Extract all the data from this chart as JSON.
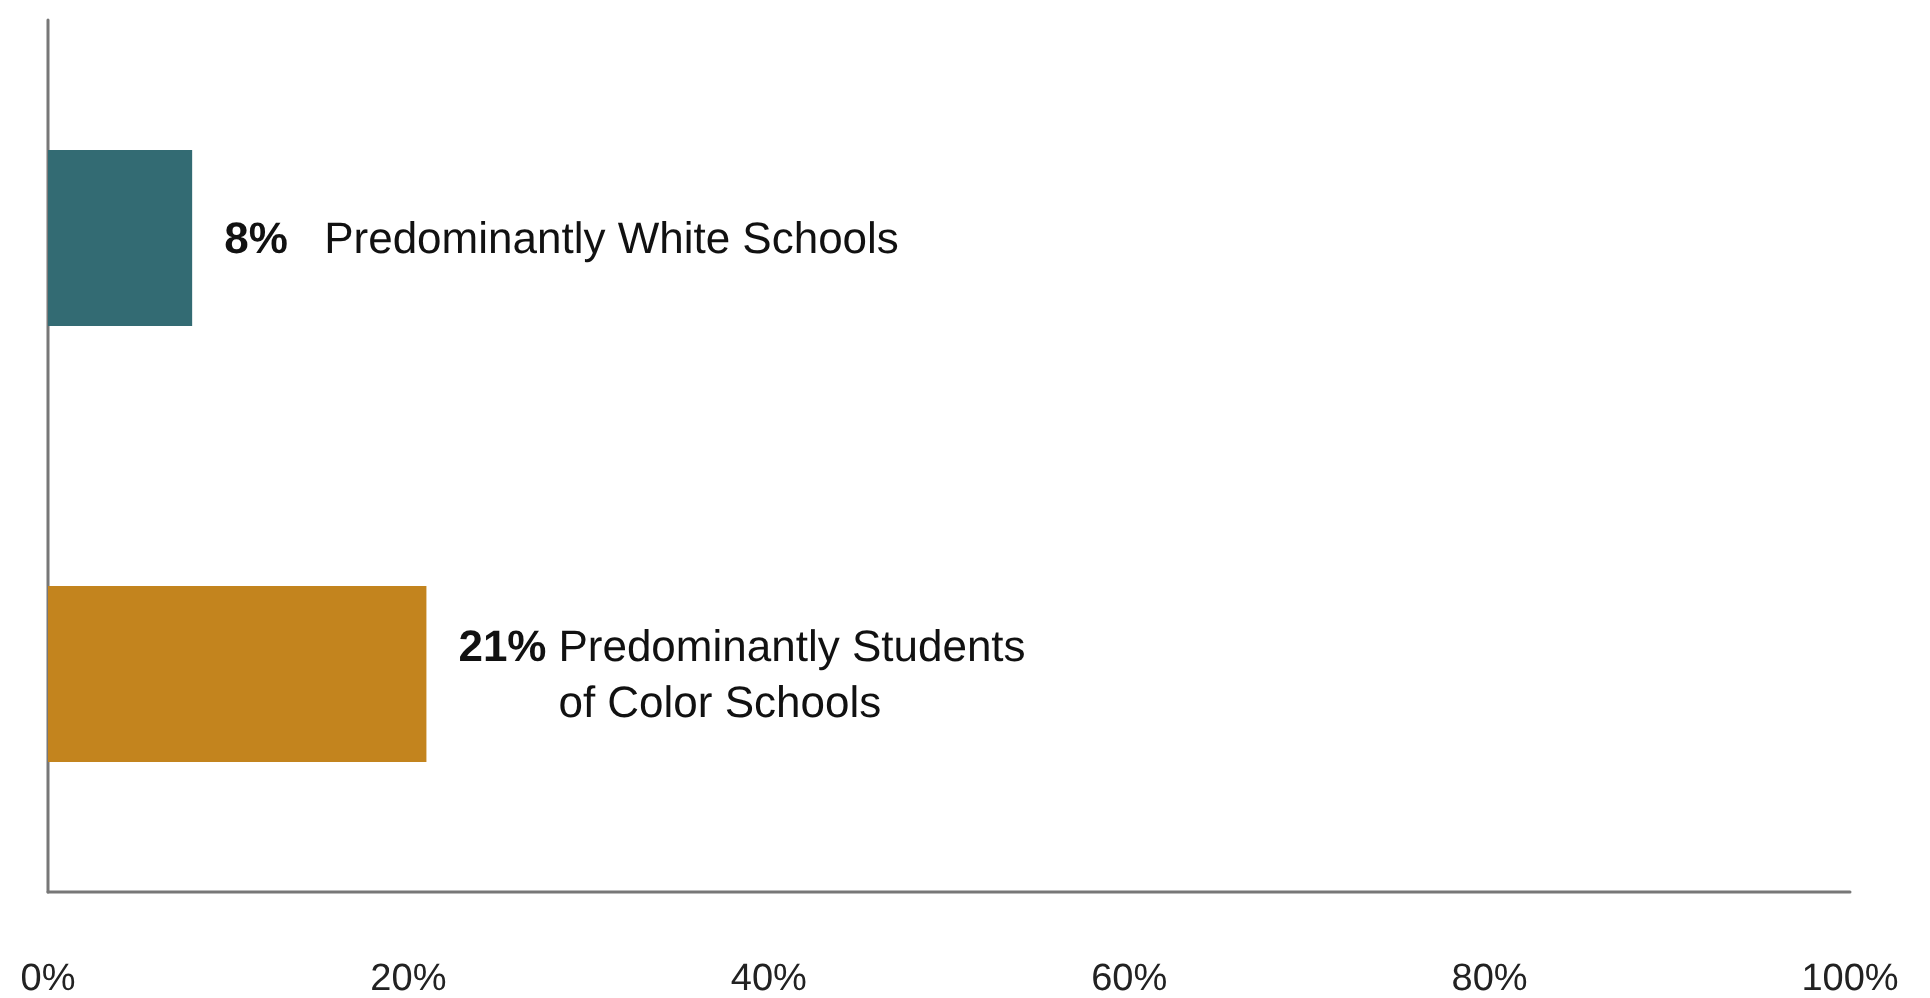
{
  "chart_data": {
    "type": "bar",
    "orientation": "horizontal",
    "categories": [
      "Predominantly White Schools",
      "Predominantly Students\nof Color Schools"
    ],
    "values": [
      8,
      21
    ],
    "colors": [
      "#336b73",
      "#c3841e"
    ],
    "value_labels": [
      "8%",
      "21%"
    ],
    "xlim": [
      0,
      100
    ],
    "xticks": [
      {
        "value": 0,
        "label": "0%"
      },
      {
        "value": 20,
        "label": "20%"
      },
      {
        "value": 40,
        "label": "40%"
      },
      {
        "value": 60,
        "label": "60%"
      },
      {
        "value": 80,
        "label": "80%"
      },
      {
        "value": 100,
        "label": "100%"
      }
    ],
    "grid": false
  }
}
